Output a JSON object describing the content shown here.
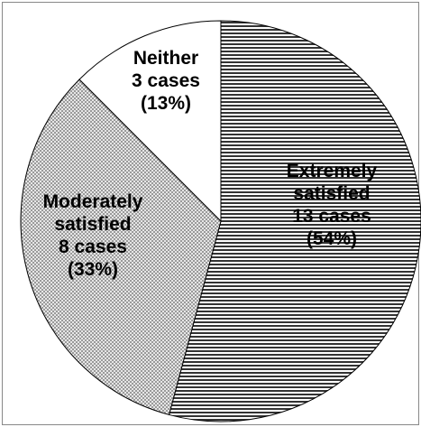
{
  "chart_data": {
    "type": "pie",
    "start_angle_deg": 0,
    "direction": "clockwise",
    "slices": [
      {
        "category": "Extremely satisfied",
        "value": 13,
        "percent": 54,
        "label_lines": [
          "Extremely",
          "satisfied",
          "13 cases",
          "(54%)"
        ],
        "pattern": "horizontal-lines"
      },
      {
        "category": "Moderately satisfied",
        "value": 8,
        "percent": 33,
        "label_lines": [
          "Moderately",
          "satisfied",
          "8 cases",
          "(33%)"
        ],
        "pattern": "checkered"
      },
      {
        "category": "Neither",
        "value": 3,
        "percent": 13,
        "label_lines": [
          "Neither",
          "3 cases",
          "(13%)"
        ],
        "pattern": "white"
      }
    ],
    "legend": "none"
  }
}
